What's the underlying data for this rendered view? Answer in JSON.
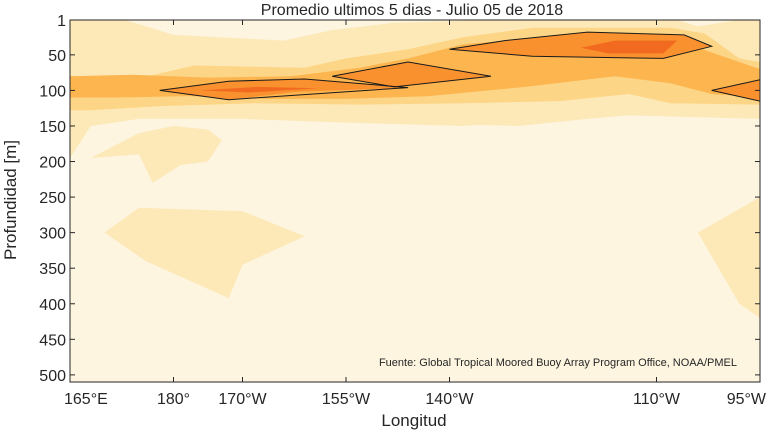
{
  "chart_data": {
    "type": "contour",
    "title": "Promedio ultimos 5 dias - Julio 05 de 2018",
    "xlabel": "Longitud",
    "ylabel": "Profundidad [m]",
    "source_note": "Fuente: Global Tropical Moored Buoy Array Program Office, NOAA/PMEL",
    "x_ticks": [
      {
        "lon": 165,
        "label": "165°E"
      },
      {
        "lon": 180,
        "label": "180°"
      },
      {
        "lon": 190,
        "label": "170°W"
      },
      {
        "lon": 205,
        "label": "155°W"
      },
      {
        "lon": 220,
        "label": "140°W"
      },
      {
        "lon": 250,
        "label": "110°W"
      },
      {
        "lon": 265,
        "label": "95°W"
      }
    ],
    "y_ticks": [
      1,
      50,
      100,
      150,
      200,
      250,
      300,
      350,
      400,
      450,
      500
    ],
    "xlim": [
      165,
      265
    ],
    "ylim": [
      1,
      510
    ],
    "y_reversed": true,
    "level_colors": [
      "#fdf5e0",
      "#fde9b8",
      "#fdd586",
      "#fcb54f",
      "#f9912f",
      "#f26a1f"
    ],
    "regions": [
      {
        "level": 1,
        "points": [
          [
            165,
            1
          ],
          [
            173,
            1
          ],
          [
            180,
            22
          ],
          [
            196,
            30
          ],
          [
            203,
            15
          ],
          [
            212,
            5
          ],
          [
            226,
            1
          ],
          [
            253,
            1
          ],
          [
            256,
            10
          ],
          [
            262,
            1
          ],
          [
            265,
            1
          ],
          [
            265,
            140
          ],
          [
            246,
            135
          ],
          [
            236,
            140
          ],
          [
            222,
            150
          ],
          [
            204,
            145
          ],
          [
            190,
            140
          ],
          [
            175,
            140
          ],
          [
            168,
            150
          ],
          [
            165,
            195
          ]
        ]
      },
      {
        "level": 1,
        "points": [
          [
            170,
            300
          ],
          [
            175,
            265
          ],
          [
            190,
            270
          ],
          [
            199,
            305
          ],
          [
            190,
            345
          ],
          [
            188,
            392
          ],
          [
            176,
            340
          ]
        ]
      },
      {
        "level": 1,
        "points": [
          [
            168,
            195
          ],
          [
            175,
            190
          ],
          [
            177,
            230
          ],
          [
            181,
            205
          ],
          [
            185,
            200
          ],
          [
            187,
            170
          ],
          [
            185,
            155
          ],
          [
            180,
            150
          ],
          [
            175,
            160
          ]
        ]
      },
      {
        "level": 1,
        "points": [
          [
            256,
            300
          ],
          [
            265,
            250
          ],
          [
            265,
            420
          ],
          [
            262,
            400
          ]
        ]
      },
      {
        "level": 1,
        "points": [
          [
            165,
            130
          ],
          [
            200,
            135
          ],
          [
            206,
            130
          ],
          [
            213,
            145
          ],
          [
            230,
            150
          ],
          [
            240,
            140
          ],
          [
            254,
            128
          ],
          [
            265,
            135
          ]
        ]
      },
      {
        "level": 2,
        "points": [
          [
            165,
            80
          ],
          [
            174,
            85
          ],
          [
            183,
            65
          ],
          [
            199,
            68
          ],
          [
            205,
            55
          ],
          [
            214,
            42
          ],
          [
            222,
            25
          ],
          [
            232,
            12
          ],
          [
            252,
            12
          ],
          [
            257,
            20
          ],
          [
            262,
            55
          ],
          [
            265,
            60
          ],
          [
            265,
            120
          ],
          [
            252,
            118
          ],
          [
            246,
            105
          ],
          [
            236,
            115
          ],
          [
            222,
            118
          ],
          [
            207,
            120
          ],
          [
            192,
            118
          ],
          [
            178,
            122
          ],
          [
            168,
            128
          ],
          [
            165,
            128
          ]
        ]
      },
      {
        "level": 3,
        "points": [
          [
            165,
            80
          ],
          [
            174,
            78
          ],
          [
            185,
            82
          ],
          [
            197,
            80
          ],
          [
            207,
            68
          ],
          [
            214,
            55
          ],
          [
            222,
            35
          ],
          [
            238,
            22
          ],
          [
            252,
            25
          ],
          [
            256,
            40
          ],
          [
            262,
            60
          ],
          [
            265,
            70
          ],
          [
            265,
            110
          ],
          [
            258,
            105
          ],
          [
            252,
            90
          ],
          [
            244,
            80
          ],
          [
            231,
            95
          ],
          [
            217,
            108
          ],
          [
            205,
            112
          ],
          [
            194,
            112
          ],
          [
            182,
            108
          ],
          [
            172,
            110
          ],
          [
            165,
            110
          ]
        ]
      },
      {
        "level": 4,
        "points": [
          [
            178,
            100
          ],
          [
            187,
            88
          ],
          [
            199,
            84
          ],
          [
            214,
            96
          ],
          [
            198,
            102
          ],
          [
            188,
            113
          ]
        ]
      },
      {
        "level": 4,
        "points": [
          [
            203,
            80
          ],
          [
            214,
            60
          ],
          [
            226,
            80
          ],
          [
            212,
            95
          ]
        ]
      },
      {
        "level": 4,
        "points": [
          [
            220,
            42
          ],
          [
            228,
            30
          ],
          [
            240,
            18
          ],
          [
            254,
            22
          ],
          [
            258,
            38
          ],
          [
            251,
            55
          ],
          [
            232,
            52
          ]
        ]
      },
      {
        "level": 4,
        "points": [
          [
            258,
            100
          ],
          [
            265,
            85
          ],
          [
            265,
            115
          ]
        ]
      },
      {
        "level": 5,
        "points": [
          [
            184,
            100
          ],
          [
            192,
            95
          ],
          [
            201,
            97
          ],
          [
            191,
            103
          ]
        ]
      },
      {
        "level": 5,
        "points": [
          [
            239,
            40
          ],
          [
            244,
            30
          ],
          [
            253,
            30
          ],
          [
            251,
            48
          ],
          [
            243,
            48
          ]
        ]
      }
    ],
    "contour_lines": [
      [
        [
          178,
          100
        ],
        [
          188,
          87
        ],
        [
          199,
          84
        ],
        [
          214,
          96
        ],
        [
          188,
          113
        ],
        [
          178,
          100
        ]
      ],
      [
        [
          203,
          80
        ],
        [
          214,
          60
        ],
        [
          226,
          80
        ],
        [
          212,
          95
        ],
        [
          203,
          80
        ]
      ],
      [
        [
          220,
          42
        ],
        [
          228,
          30
        ],
        [
          240,
          18
        ],
        [
          254,
          22
        ],
        [
          258,
          38
        ],
        [
          251,
          55
        ],
        [
          232,
          52
        ],
        [
          220,
          42
        ]
      ],
      [
        [
          265,
          85
        ],
        [
          258,
          100
        ],
        [
          265,
          115
        ]
      ]
    ]
  }
}
